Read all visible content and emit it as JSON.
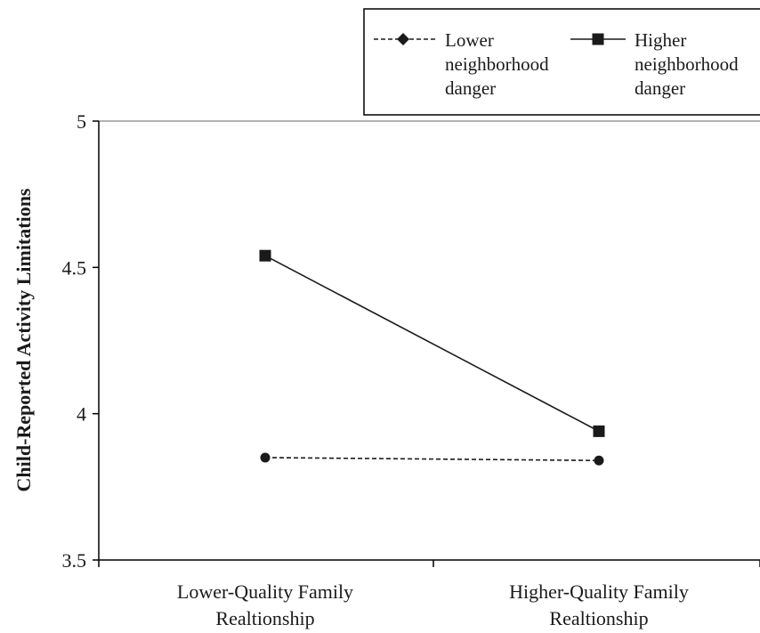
{
  "chart_data": {
    "type": "line",
    "title": "",
    "xlabel": "",
    "ylabel": "Child-Reported Activity Limitations",
    "categories": [
      [
        "Lower-Quality Family",
        "Realtionship"
      ],
      [
        "Higher-Quality Family",
        "Realtionship"
      ]
    ],
    "ylim": [
      3.5,
      5
    ],
    "yticks": [
      "3.5",
      "4",
      "4.5",
      "5"
    ],
    "grid": false,
    "legend_position": "top-right",
    "series": [
      {
        "name": [
          "Lower",
          "neighborhood",
          "danger"
        ],
        "values": [
          3.85,
          3.84
        ],
        "line_style": "dashed",
        "marker": "diamond",
        "color": "#1a1a1a"
      },
      {
        "name": [
          "Higher",
          "neighborhood",
          "danger"
        ],
        "values": [
          4.54,
          3.94
        ],
        "line_style": "solid",
        "marker": "square",
        "color": "#1a1a1a"
      }
    ]
  }
}
